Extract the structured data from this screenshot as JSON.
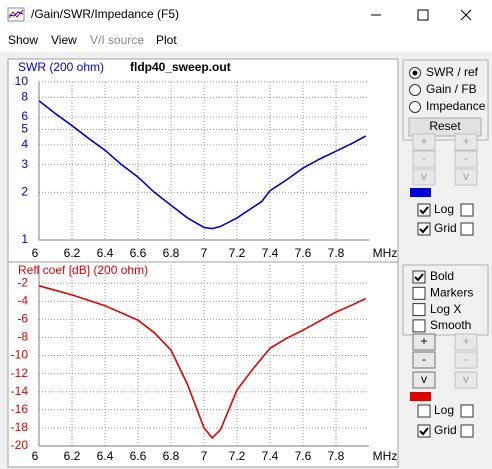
{
  "window": {
    "title": "/Gain/SWR/Impedance (F5)"
  },
  "menu": [
    {
      "label": "Show",
      "enabled": true
    },
    {
      "label": "View",
      "enabled": true
    },
    {
      "label": "V/I source",
      "enabled": false
    },
    {
      "label": "Plot",
      "enabled": true
    }
  ],
  "chart_data": [
    {
      "type": "line",
      "title": "SWR (200 ohm)",
      "annotation": "fldp40_sweep.out",
      "x_unit": "MHz",
      "x": [
        6,
        6.1,
        6.2,
        6.3,
        6.4,
        6.5,
        6.6,
        6.7,
        6.8,
        6.9,
        7.0,
        7.05,
        7.1,
        7.2,
        7.3,
        7.35,
        7.4,
        7.5,
        7.6,
        7.7,
        7.8,
        7.9,
        7.98
      ],
      "series": [
        {
          "color": "#0000d8",
          "values": [
            7.6,
            6.3,
            5.3,
            4.4,
            3.7,
            3.0,
            2.5,
            2.0,
            1.66,
            1.38,
            1.2,
            1.18,
            1.22,
            1.38,
            1.62,
            1.75,
            2.05,
            2.4,
            2.85,
            3.25,
            3.65,
            4.1,
            4.55
          ]
        }
      ],
      "xlim": [
        6,
        8
      ],
      "xticks": [
        6,
        6.2,
        6.4,
        6.6,
        6.8,
        7,
        7.2,
        7.4,
        7.6,
        7.8
      ],
      "ylim": [
        1,
        10
      ],
      "yscale": "log",
      "yticks": [
        1,
        2,
        3,
        4,
        5,
        6,
        8,
        10
      ],
      "grid": true
    },
    {
      "type": "line",
      "title": "Refl coef [dB] (200 ohm)",
      "x_unit": "MHz",
      "x": [
        6,
        6.2,
        6.4,
        6.6,
        6.7,
        6.8,
        6.9,
        7.0,
        7.05,
        7.1,
        7.2,
        7.3,
        7.4,
        7.5,
        7.6,
        7.7,
        7.8,
        7.9,
        7.98
      ],
      "series": [
        {
          "color": "#e00000",
          "values": [
            -2.3,
            -3.3,
            -4.5,
            -6.1,
            -7.5,
            -9.4,
            -13.2,
            -18,
            -19.1,
            -18.2,
            -13.8,
            -11.4,
            -9.2,
            -8.1,
            -7.2,
            -6.2,
            -5.2,
            -4.4,
            -3.7
          ]
        }
      ],
      "xlim": [
        6,
        8
      ],
      "xticks": [
        6,
        6.2,
        6.4,
        6.6,
        6.8,
        7,
        7.2,
        7.4,
        7.6,
        7.8
      ],
      "ylim": [
        -20,
        0
      ],
      "yscale": "linear",
      "yticks": [
        -2,
        -4,
        -6,
        -8,
        -10,
        -12,
        -14,
        -16,
        -18,
        -20
      ],
      "grid": true
    }
  ],
  "controls": [
    {
      "radios": [
        {
          "label": "SWR / ref",
          "checked": true
        },
        {
          "label": "Gain / FB",
          "checked": false
        },
        {
          "label": "Impedance",
          "checked": false
        }
      ],
      "reset": "Reset",
      "buttons": [
        {
          "labels": [
            "+",
            "+"
          ],
          "enabled": [
            false,
            false
          ]
        },
        {
          "labels": [
            "-",
            "-"
          ],
          "enabled": [
            false,
            false
          ]
        },
        {
          "labels": [
            "v",
            "v"
          ],
          "enabled": [
            false,
            false
          ]
        }
      ],
      "checks": [
        {
          "label": "Log",
          "checked": [
            true,
            false
          ]
        },
        {
          "label": "Grid",
          "checked": [
            true,
            false
          ]
        }
      ]
    },
    {
      "options": [
        {
          "label": "Bold",
          "checked": true
        },
        {
          "label": "Markers",
          "checked": false
        },
        {
          "label": "Log X",
          "checked": false
        },
        {
          "label": "Smooth",
          "checked": false
        }
      ],
      "buttons": [
        {
          "labels": [
            "+",
            "+"
          ],
          "enabled": [
            true,
            false
          ]
        },
        {
          "labels": [
            "-",
            "-"
          ],
          "enabled": [
            true,
            false
          ]
        },
        {
          "labels": [
            "v",
            "v"
          ],
          "enabled": [
            true,
            false
          ]
        }
      ],
      "checks": [
        {
          "label": "Log",
          "checked": [
            false,
            false
          ]
        },
        {
          "label": "Grid",
          "checked": [
            true,
            false
          ]
        }
      ]
    }
  ]
}
